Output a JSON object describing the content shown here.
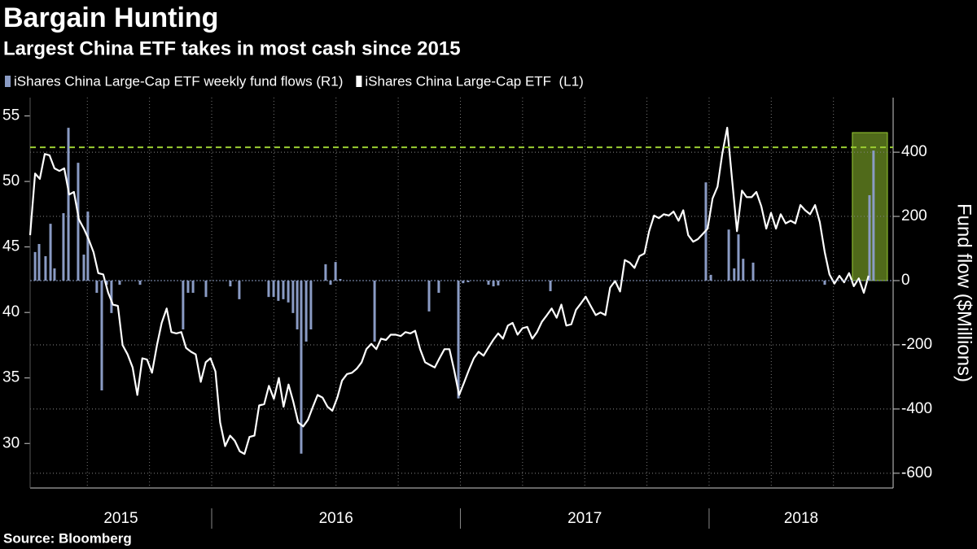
{
  "chart_data": {
    "type": "bar-line",
    "title": "Bargain Hunting",
    "subtitle": "Largest China ETF takes in most cash since 2015",
    "source": "Source: Bloomberg",
    "y2_label": "Fund flow ($Millions)",
    "xlim": [
      2015.27,
      2018.74
    ],
    "xticks": [
      {
        "value": 2015,
        "label": "2015"
      },
      {
        "value": 2016,
        "label": "2016"
      },
      {
        "value": 2017,
        "label": "2017"
      },
      {
        "value": 2018,
        "label": "2018"
      }
    ],
    "xgrid": [
      2015.5,
      2015.75,
      2016,
      2016.25,
      2016.5,
      2016.75,
      2017,
      2017.25,
      2017.5,
      2017.75,
      2018,
      2018.25,
      2018.5
    ],
    "ylim": [
      26.6,
      56.4
    ],
    "yticks": [
      30,
      35,
      40,
      45,
      50,
      55
    ],
    "y2lim": [
      -646,
      570
    ],
    "y2ticks": [
      -600,
      -400,
      -200,
      0,
      200,
      400
    ],
    "grid": true,
    "reference_line": {
      "axis": "y2",
      "value": 415,
      "color": "#9acd32"
    },
    "highlight": {
      "x": [
        2018.576,
        2018.717
      ],
      "y2": [
        0,
        461
      ],
      "color": "#6b8e23"
    },
    "series": [
      {
        "name": "iShares China Large-Cap ETF weekly fund flows (R1)",
        "color": "#8a9bc4",
        "axis": "y2",
        "type": "bar",
        "x": [
          2015.29,
          2015.306,
          2015.332,
          2015.352,
          2015.368,
          2015.404,
          2015.424,
          2015.463,
          2015.486,
          2015.502,
          2015.538,
          2015.558,
          2015.578,
          2015.597,
          2015.63,
          2015.712,
          2015.885,
          2015.905,
          2015.925,
          2015.977,
          2016.075,
          2016.111,
          2016.229,
          2016.249,
          2016.268,
          2016.288,
          2016.308,
          2016.327,
          2016.344,
          2016.36,
          2016.38,
          2016.399,
          2016.458,
          2016.478,
          2016.498,
          2016.517,
          2016.655,
          2016.874,
          2016.913,
          2016.992,
          2017.011,
          2017.031,
          2017.113,
          2017.133,
          2017.152,
          2017.362,
          2017.987,
          2018.007,
          2018.079,
          2018.101,
          2018.118,
          2018.137,
          2018.177,
          2018.465,
          2018.645,
          2018.661
        ],
        "values": [
          89,
          114,
          76,
          177,
          38,
          210,
          476,
          367,
          81,
          215,
          -38,
          -342,
          -13,
          -101,
          -13,
          -13,
          -152,
          -38,
          -38,
          -51,
          -18,
          -58,
          -51,
          -51,
          -63,
          -58,
          -68,
          -101,
          -152,
          -539,
          -190,
          -152,
          51,
          -13,
          58,
          5,
          -190,
          -96,
          -38,
          -367,
          -8,
          -5,
          -13,
          -18,
          -15,
          -33,
          306,
          18,
          159,
          38,
          144,
          68,
          56,
          -13,
          266,
          405
        ]
      },
      {
        "name": "iShares China Large-Cap ETF  (L1)",
        "color": "#ffffff",
        "axis": "y",
        "type": "line",
        "x": [
          2015.27,
          2015.29,
          2015.309,
          2015.329,
          2015.348,
          2015.368,
          2015.388,
          2015.407,
          2015.427,
          2015.446,
          2015.466,
          2015.486,
          2015.505,
          2015.525,
          2015.544,
          2015.564,
          2015.584,
          2015.603,
          2015.623,
          2015.642,
          2015.662,
          2015.682,
          2015.701,
          2015.721,
          2015.74,
          2015.76,
          2015.78,
          2015.799,
          2015.819,
          2015.838,
          2015.858,
          2015.878,
          2015.897,
          2015.917,
          2015.936,
          2015.956,
          2015.976,
          2015.995,
          2016.015,
          2016.034,
          2016.054,
          2016.074,
          2016.093,
          2016.113,
          2016.132,
          2016.152,
          2016.172,
          2016.191,
          2016.211,
          2016.23,
          2016.25,
          2016.27,
          2016.289,
          2016.309,
          2016.328,
          2016.348,
          2016.368,
          2016.387,
          2016.407,
          2016.426,
          2016.446,
          2016.466,
          2016.485,
          2016.505,
          2016.524,
          2016.544,
          2016.564,
          2016.583,
          2016.603,
          2016.622,
          2016.642,
          2016.662,
          2016.681,
          2016.701,
          2016.72,
          2016.74,
          2016.76,
          2016.779,
          2016.799,
          2016.818,
          2016.838,
          2016.858,
          2016.877,
          2016.897,
          2016.916,
          2016.936,
          2016.956,
          2016.975,
          2016.995,
          2017.014,
          2017.034,
          2017.054,
          2017.073,
          2017.093,
          2017.112,
          2017.132,
          2017.152,
          2017.171,
          2017.191,
          2017.21,
          2017.23,
          2017.25,
          2017.269,
          2017.289,
          2017.308,
          2017.328,
          2017.348,
          2017.367,
          2017.387,
          2017.406,
          2017.426,
          2017.446,
          2017.465,
          2017.485,
          2017.504,
          2017.524,
          2017.544,
          2017.563,
          2017.583,
          2017.602,
          2017.622,
          2017.642,
          2017.661,
          2017.681,
          2017.7,
          2017.72,
          2017.74,
          2017.759,
          2017.779,
          2017.798,
          2017.818,
          2017.838,
          2017.857,
          2017.877,
          2017.896,
          2017.916,
          2017.936,
          2017.955,
          2017.975,
          2017.994,
          2018.014,
          2018.034,
          2018.053,
          2018.073,
          2018.092,
          2018.112,
          2018.132,
          2018.151,
          2018.171,
          2018.19,
          2018.21,
          2018.23,
          2018.249,
          2018.269,
          2018.288,
          2018.308,
          2018.328,
          2018.347,
          2018.367,
          2018.386,
          2018.406,
          2018.426,
          2018.445,
          2018.465,
          2018.484,
          2018.504,
          2018.524,
          2018.543,
          2018.563,
          2018.582,
          2018.602,
          2018.622,
          2018.641
        ],
        "values": [
          45.9,
          50.6,
          50.2,
          52.1,
          52,
          51,
          50.8,
          51,
          49,
          49.2,
          47.1,
          46.4,
          45.6,
          44.6,
          43,
          42.9,
          41.5,
          40.6,
          40.5,
          37.5,
          36.8,
          35.8,
          33.7,
          36.5,
          36.4,
          35.4,
          37.5,
          39.2,
          40.3,
          38.5,
          38.4,
          38.5,
          37.3,
          37,
          36.8,
          34.7,
          36.2,
          36.5,
          35.5,
          31.6,
          29.8,
          30.6,
          30.2,
          29.4,
          29.2,
          30.5,
          30.6,
          32.9,
          33,
          34.4,
          33.4,
          35,
          32.8,
          34.5,
          33.2,
          31.6,
          31.3,
          31.8,
          32.8,
          33.7,
          33.5,
          32.8,
          32.5,
          33.5,
          34.8,
          35.3,
          35.4,
          35.7,
          36.2,
          37.2,
          37.6,
          37.2,
          38,
          37.9,
          38.3,
          38.3,
          38.2,
          38.5,
          38.4,
          38.6,
          37.2,
          36.2,
          36,
          35.8,
          36.5,
          37.2,
          37.2,
          35.6,
          33.7,
          34.6,
          35.6,
          36.5,
          37,
          36.7,
          37.3,
          37.9,
          38.4,
          38,
          39,
          39.2,
          38.3,
          38.8,
          38.9,
          38,
          38.5,
          39.3,
          39.8,
          40.3,
          39.6,
          40.6,
          39,
          39.1,
          40.2,
          40.7,
          41.2,
          40.5,
          39.8,
          40,
          39.8,
          41.9,
          42.4,
          41.6,
          44,
          43.8,
          43.4,
          44.3,
          44.5,
          46.2,
          47.4,
          47.2,
          47.5,
          47.4,
          47.7,
          47,
          47.8,
          45.9,
          45.4,
          45.6,
          46,
          46.4,
          48.7,
          49.6,
          52.1,
          54.1,
          50.2,
          46.2,
          49.3,
          48.8,
          48.8,
          49.2,
          48.1,
          46.4,
          47.6,
          46.4,
          47.5,
          46.8,
          47,
          46.8,
          48.2,
          47.8,
          47.5,
          48.2,
          46.9,
          44.6,
          42.9,
          42.2,
          42.8,
          42.3,
          43,
          42,
          42.6,
          41.5,
          42.8
        ]
      }
    ]
  }
}
